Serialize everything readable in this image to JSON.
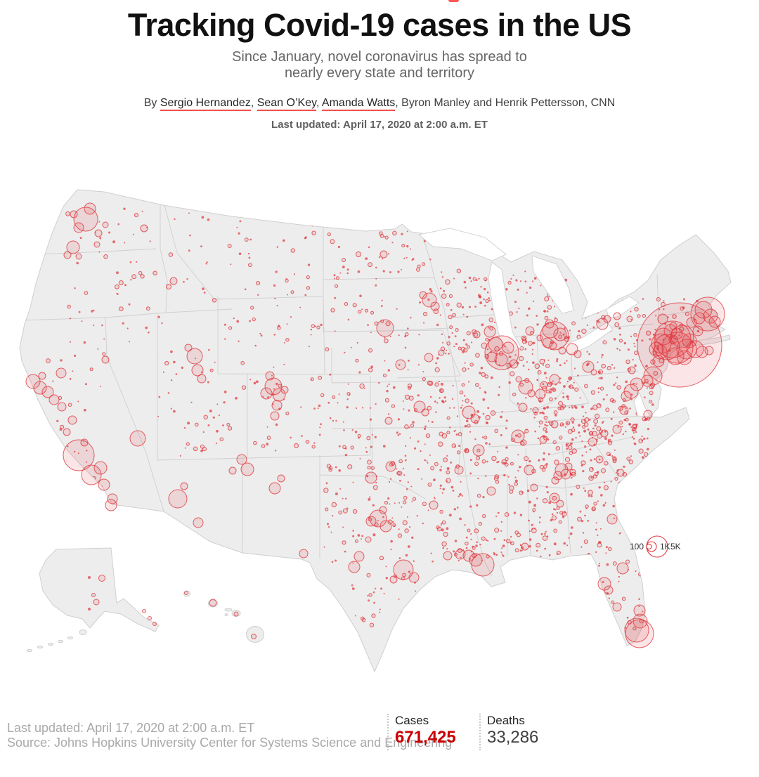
{
  "header": {
    "title": "Tracking Covid-19 cases in the US",
    "subtitle_line1": "Since January, novel coronavirus has spread to",
    "subtitle_line2": "nearly every state and territory",
    "byline_parts": [
      {
        "text": "By "
      },
      {
        "text": "Sergio Hernandez",
        "linked": true
      },
      {
        "text": ", "
      },
      {
        "text": "Sean O’Key",
        "linked": true
      },
      {
        "text": ", "
      },
      {
        "text": "Amanda Watts",
        "linked": true
      },
      {
        "text": ", Byron Manley and Henrik Pettersson, CNN"
      }
    ],
    "updated": "Last updated: April 17, 2020 at 2:00 a.m. ET"
  },
  "footer": {
    "updated": "Last updated: April 17, 2020 at 2:00 a.m. ET",
    "source": "Source: Johns Hopkins University Center for Systems Science and Engineering"
  },
  "stats": {
    "cases_label": "Cases",
    "cases_value": "671,425",
    "deaths_label": "Deaths",
    "deaths_value": "33,286"
  },
  "map": {
    "legend_labels": [
      "100",
      "1K",
      "5K"
    ],
    "colors": {
      "bubble_red": "#e0393f",
      "land_gray": "#ededed",
      "border_gray": "#cfcfcf"
    },
    "seed": 7,
    "bubbles": [
      [
        122,
        72,
        17
      ],
      [
        128,
        57,
        8
      ],
      [
        112,
        84,
        7
      ],
      [
        140,
        92,
        5
      ],
      [
        150,
        80,
        4
      ],
      [
        105,
        65,
        5
      ],
      [
        104,
        112,
        9
      ],
      [
        96,
        123,
        5
      ],
      [
        112,
        125,
        4
      ],
      [
        205,
        85,
        5
      ],
      [
        138,
        108,
        4
      ],
      [
        247,
        160,
        5
      ],
      [
        240,
        168,
        3.5
      ],
      [
        47,
        303,
        10
      ],
      [
        57,
        312,
        9
      ],
      [
        68,
        318,
        8
      ],
      [
        77,
        329,
        7
      ],
      [
        88,
        339,
        6
      ],
      [
        87,
        291,
        7
      ],
      [
        60,
        295,
        5
      ],
      [
        103,
        358,
        6
      ],
      [
        95,
        375,
        5
      ],
      [
        112,
        408,
        22
      ],
      [
        130,
        436,
        14
      ],
      [
        148,
        450,
        8
      ],
      [
        160,
        470,
        7
      ],
      [
        158,
        479,
        8
      ],
      [
        143,
        426,
        9
      ],
      [
        120,
        390,
        5
      ],
      [
        196,
        384,
        11
      ],
      [
        150,
        272,
        5
      ],
      [
        253,
        470,
        13
      ],
      [
        282,
        504,
        7
      ],
      [
        262,
        452,
        5
      ],
      [
        277,
        267,
        11
      ],
      [
        281,
        287,
        8
      ],
      [
        287,
        299,
        6
      ],
      [
        268,
        255,
        5
      ],
      [
        389,
        310,
        12
      ],
      [
        397,
        322,
        9
      ],
      [
        379,
        320,
        8
      ],
      [
        394,
        337,
        7
      ],
      [
        391,
        352,
        6
      ],
      [
        384,
        295,
        6
      ],
      [
        405,
        315,
        5
      ],
      [
        352,
        428,
        9
      ],
      [
        344,
        414,
        7
      ],
      [
        331,
        430,
        5
      ],
      [
        391,
        455,
        8
      ],
      [
        400,
        441,
        5
      ],
      [
        432,
        548,
        6
      ],
      [
        546,
        122,
        5
      ],
      [
        510,
        122,
        3.5
      ],
      [
        548,
        227,
        12
      ],
      [
        611,
        187,
        10
      ],
      [
        619,
        196,
        6
      ],
      [
        602,
        180,
        5
      ],
      [
        570,
        279,
        7
      ],
      [
        610,
        269,
        6
      ],
      [
        628,
        262,
        4
      ],
      [
        597,
        339,
        8
      ],
      [
        605,
        347,
        5
      ],
      [
        667,
        347,
        9
      ],
      [
        676,
        356,
        6
      ],
      [
        553,
        359,
        5
      ],
      [
        528,
        440,
        8
      ],
      [
        556,
        424,
        7
      ],
      [
        538,
        498,
        12
      ],
      [
        549,
        509,
        8
      ],
      [
        528,
        502,
        7
      ],
      [
        545,
        486,
        5
      ],
      [
        511,
        552,
        7
      ],
      [
        504,
        567,
        8
      ],
      [
        524,
        528,
        4
      ],
      [
        574,
        571,
        14
      ],
      [
        589,
        582,
        7
      ],
      [
        560,
        585,
        5
      ],
      [
        714,
        262,
        24
      ],
      [
        705,
        250,
        10
      ],
      [
        713,
        272,
        9
      ],
      [
        723,
        255,
        8
      ],
      [
        700,
        268,
        7
      ],
      [
        731,
        278,
        6
      ],
      [
        697,
        232,
        8
      ],
      [
        678,
        236,
        5
      ],
      [
        689,
        252,
        4
      ],
      [
        789,
        238,
        20
      ],
      [
        783,
        230,
        11
      ],
      [
        797,
        236,
        9
      ],
      [
        779,
        248,
        7
      ],
      [
        782,
        221,
        6
      ],
      [
        754,
        231,
        6
      ],
      [
        768,
        241,
        4
      ],
      [
        814,
        257,
        8
      ],
      [
        822,
        264,
        5
      ],
      [
        800,
        259,
        5
      ],
      [
        787,
        252,
        5
      ],
      [
        789,
        300,
        7
      ],
      [
        769,
        321,
        7
      ],
      [
        774,
        308,
        5
      ],
      [
        748,
        311,
        10
      ],
      [
        756,
        320,
        5
      ],
      [
        738,
        300,
        4
      ],
      [
        744,
        340,
        6
      ],
      [
        762,
        344,
        4
      ],
      [
        737,
        381,
        9
      ],
      [
        745,
        390,
        4
      ],
      [
        681,
        401,
        8
      ],
      [
        789,
        364,
        5
      ],
      [
        773,
        386,
        5
      ],
      [
        837,
        282,
        8
      ],
      [
        845,
        290,
        4
      ],
      [
        857,
        221,
        8
      ],
      [
        864,
        214,
        5
      ],
      [
        878,
        210,
        5
      ],
      [
        896,
        214,
        4
      ],
      [
        943,
        214,
        7
      ],
      [
        963,
        235,
        8
      ],
      [
        958,
        243,
        6
      ],
      [
        993,
        231,
        7
      ],
      [
        958,
        224,
        5
      ],
      [
        1007,
        207,
        24
      ],
      [
        1001,
        201,
        12
      ],
      [
        1011,
        210,
        10
      ],
      [
        1017,
        218,
        8
      ],
      [
        995,
        213,
        8
      ],
      [
        984,
        219,
        7
      ],
      [
        967,
        251,
        60
      ],
      [
        957,
        243,
        26
      ],
      [
        964,
        255,
        22
      ],
      [
        949,
        254,
        18
      ],
      [
        971,
        239,
        16
      ],
      [
        977,
        257,
        14
      ],
      [
        944,
        239,
        12
      ],
      [
        939,
        261,
        10
      ],
      [
        981,
        245,
        10
      ],
      [
        954,
        231,
        9
      ],
      [
        961,
        267,
        12
      ],
      [
        974,
        269,
        10
      ],
      [
        989,
        257,
        12
      ],
      [
        999,
        261,
        8
      ],
      [
        1009,
        259,
        6
      ],
      [
        941,
        249,
        14
      ],
      [
        934,
        257,
        10
      ],
      [
        937,
        274,
        8
      ],
      [
        929,
        295,
        13
      ],
      [
        921,
        302,
        8
      ],
      [
        899,
        287,
        5
      ],
      [
        906,
        307,
        9
      ],
      [
        898,
        317,
        10
      ],
      [
        891,
        324,
        7
      ],
      [
        888,
        344,
        6
      ],
      [
        922,
        350,
        6
      ],
      [
        843,
        389,
        6
      ],
      [
        878,
        371,
        6
      ],
      [
        860,
        377,
        5
      ],
      [
        853,
        414,
        5
      ],
      [
        883,
        433,
        5
      ],
      [
        799,
        429,
        9
      ],
      [
        805,
        435,
        7
      ],
      [
        794,
        437,
        6
      ],
      [
        809,
        424,
        5
      ],
      [
        790,
        444,
        5
      ],
      [
        815,
        432,
        4
      ],
      [
        789,
        469,
        7
      ],
      [
        797,
        477,
        5
      ],
      [
        753,
        429,
        7
      ],
      [
        760,
        454,
        5
      ],
      [
        747,
        538,
        5
      ],
      [
        699,
        459,
        6
      ],
      [
        687,
        564,
        16
      ],
      [
        677,
        557,
        9
      ],
      [
        667,
        551,
        8
      ],
      [
        655,
        549,
        7
      ],
      [
        637,
        551,
        6
      ],
      [
        617,
        479,
        6
      ],
      [
        653,
        429,
        6
      ],
      [
        871,
        499,
        7
      ],
      [
        886,
        569,
        8
      ],
      [
        860,
        591,
        9
      ],
      [
        866,
        600,
        6
      ],
      [
        878,
        624,
        6
      ],
      [
        910,
        629,
        8
      ],
      [
        911,
        644,
        10
      ],
      [
        906,
        657,
        17
      ],
      [
        910,
        662,
        20
      ],
      [
        127,
        582,
        2
      ],
      [
        145,
        583,
        4.5
      ],
      [
        133,
        607,
        2.5
      ],
      [
        137,
        617,
        4
      ],
      [
        127,
        627,
        2
      ],
      [
        205,
        630,
        2.5
      ],
      [
        213,
        640,
        2.5
      ],
      [
        220,
        648,
        2.5
      ],
      [
        265,
        604,
        2.5
      ],
      [
        303,
        618,
        5
      ],
      [
        336,
        634,
        3
      ],
      [
        361,
        666,
        3.5
      ]
    ],
    "scatter_regions": [
      [
        95,
        55,
        225,
        205,
        40,
        1,
        3
      ],
      [
        230,
        60,
        455,
        200,
        55,
        1,
        2.8
      ],
      [
        60,
        250,
        150,
        470,
        35,
        1,
        3
      ],
      [
        225,
        210,
        350,
        410,
        55,
        1,
        2.8
      ],
      [
        355,
        210,
        460,
        405,
        60,
        1,
        3
      ],
      [
        465,
        65,
        615,
        300,
        110,
        1,
        3
      ],
      [
        465,
        305,
        660,
        430,
        110,
        1,
        3.2
      ],
      [
        460,
        420,
        640,
        560,
        110,
        1,
        3.2
      ],
      [
        500,
        560,
        600,
        650,
        30,
        1,
        2.8
      ],
      [
        620,
        145,
        820,
        335,
        270,
        1.1,
        3.4
      ],
      [
        625,
        340,
        855,
        555,
        280,
        1.1,
        3.4
      ],
      [
        822,
        185,
        1005,
        295,
        120,
        1.1,
        3.4
      ],
      [
        765,
        295,
        930,
        395,
        130,
        1.1,
        3.2
      ],
      [
        820,
        360,
        925,
        500,
        95,
        1.1,
        3.2
      ],
      [
        848,
        495,
        915,
        655,
        45,
        1,
        3
      ],
      [
        645,
        520,
        760,
        558,
        30,
        1,
        2.8
      ],
      [
        95,
        210,
        225,
        250,
        12,
        1,
        2.5
      ]
    ]
  }
}
